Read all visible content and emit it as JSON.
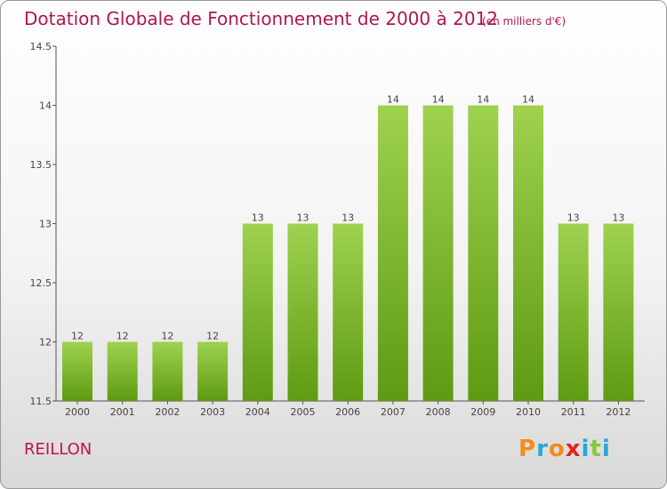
{
  "header": {
    "title": "Dotation Globale de Fonctionnement de 2000 à 2012",
    "unit": "(en milliers d'€)"
  },
  "footer": {
    "commune": "REILLON",
    "logo_text": "Proxiti",
    "logo_colors": [
      "#f28c1a",
      "#2aa6d8",
      "#f28c1a",
      "#e2231a",
      "#2aa6d8",
      "#8cc63f",
      "#2aa6d8"
    ]
  },
  "chart_data": {
    "type": "bar",
    "title": "Dotation Globale de Fonctionnement de 2000 à 2012",
    "subtitle": "(en milliers d'€)",
    "xlabel": "",
    "ylabel": "",
    "categories": [
      "2000",
      "2001",
      "2002",
      "2003",
      "2004",
      "2005",
      "2006",
      "2007",
      "2008",
      "2009",
      "2010",
      "2011",
      "2012"
    ],
    "values": [
      12,
      12,
      12,
      12,
      13,
      13,
      13,
      14,
      14,
      14,
      14,
      13,
      13
    ],
    "data_labels": [
      "12",
      "12",
      "12",
      "12",
      "13",
      "13",
      "13",
      "14",
      "14",
      "14",
      "14",
      "13",
      "13"
    ],
    "ylim": [
      11.5,
      14.5
    ],
    "yticks": [
      11.5,
      12,
      12.5,
      13,
      13.5,
      14,
      14.5
    ],
    "ytick_labels": [
      "11.5",
      "12",
      "12.5",
      "13",
      "13.5",
      "14",
      "14.5"
    ],
    "grid": false,
    "legend": "none",
    "bar_color_top": "#9fd24f",
    "bar_color_bottom": "#5e9a12"
  }
}
